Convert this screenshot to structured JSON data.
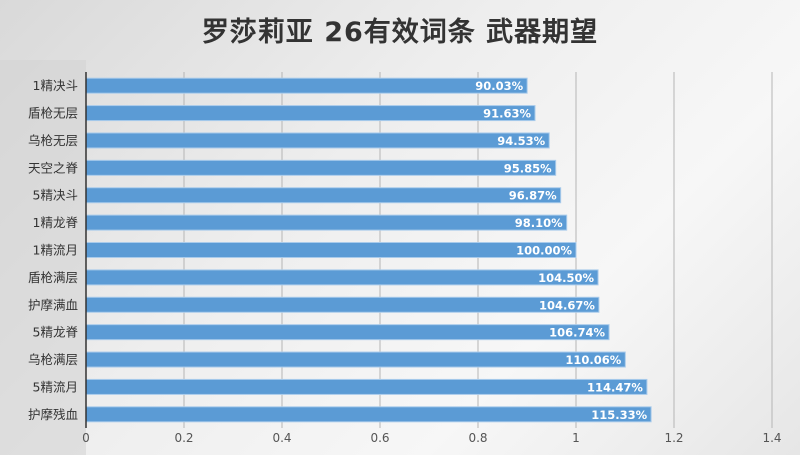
{
  "chart_data": {
    "type": "bar",
    "orientation": "horizontal",
    "title": "罗莎莉亚 26有效词条 武器期望",
    "categories": [
      "1精决斗",
      "盾枪无层",
      "乌枪无层",
      "天空之脊",
      "5精决斗",
      "1精龙脊",
      "1精流月",
      "盾枪满层",
      "护摩满血",
      "5精龙脊",
      "乌枪满层",
      "5精流月",
      "护摩残血"
    ],
    "values": [
      0.9003,
      0.9163,
      0.9453,
      0.9585,
      0.9687,
      0.981,
      1.0,
      1.045,
      1.0467,
      1.0674,
      1.1006,
      1.1447,
      1.1533
    ],
    "data_labels": [
      "90.03%",
      "91.63%",
      "94.53%",
      "95.85%",
      "96.87%",
      "98.10%",
      "100.00%",
      "104.50%",
      "104.67%",
      "106.74%",
      "110.06%",
      "114.47%",
      "115.33%"
    ],
    "xlim": [
      0,
      1.4
    ],
    "x_ticks": [
      "0",
      "0.2",
      "0.4",
      "0.6",
      "0.8",
      "1",
      "1.2",
      "1.4"
    ],
    "grid": true,
    "bar_color": "#5b9bd5",
    "label_color": "#ffffff"
  }
}
